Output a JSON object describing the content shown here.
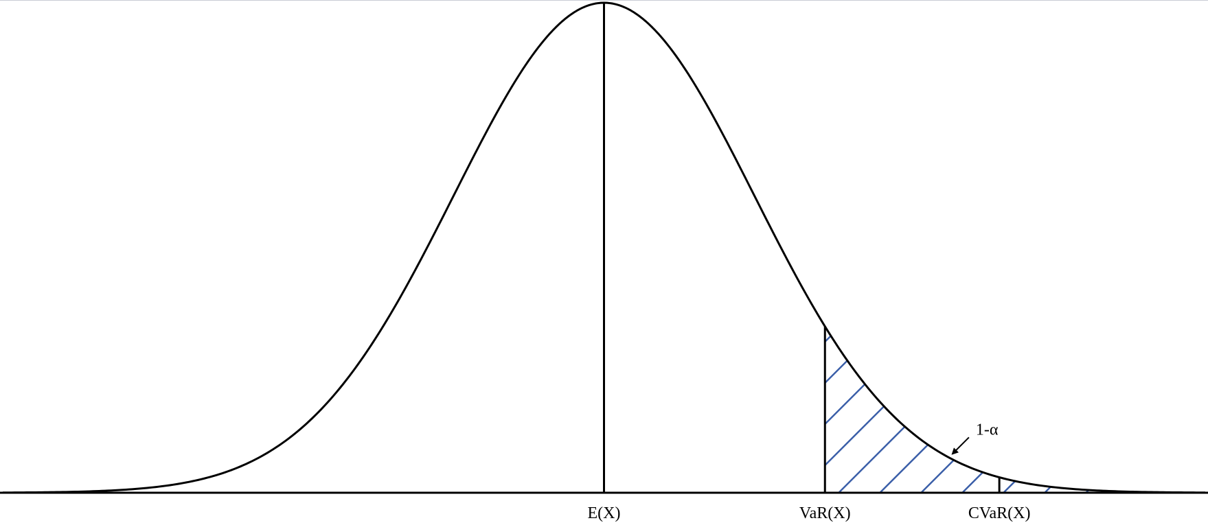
{
  "diagram": {
    "distribution": "normal",
    "mean": 0,
    "sd": 1,
    "x_range": [
      -4,
      4
    ],
    "markers": [
      {
        "id": "mean",
        "x": 0,
        "label": "E(X)"
      },
      {
        "id": "var",
        "x": 1.47,
        "label": "VaR(X)"
      },
      {
        "id": "cvar",
        "x": 2.63,
        "label": "CVaR(X)"
      }
    ],
    "shaded_tail": {
      "from": 1.47,
      "to": 4,
      "pattern": "diagonal-hatch"
    },
    "annotation": {
      "text": "1-α",
      "points_to_x": 2.3
    },
    "colors": {
      "curve": "#000000",
      "axis": "#000000",
      "hatch": "#3a5ea8",
      "background": "#ffffff"
    }
  }
}
